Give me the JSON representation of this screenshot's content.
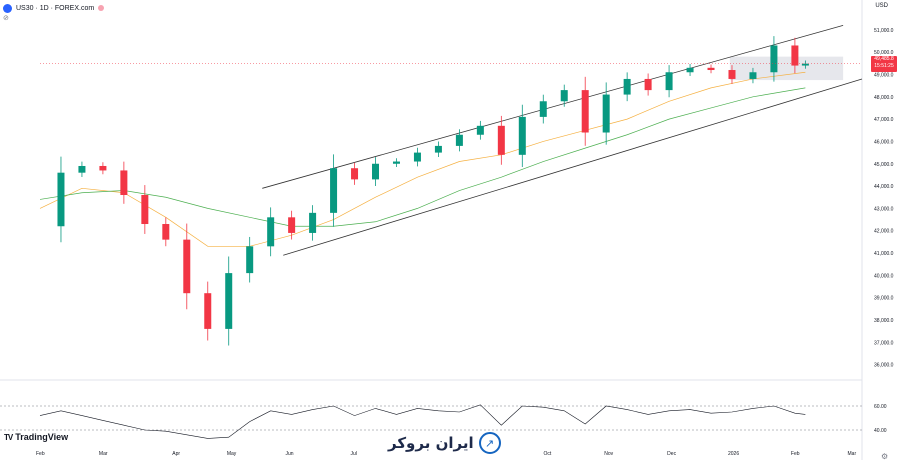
{
  "header": {
    "title": "US30 · 1D · FOREX.com",
    "currency": "USD"
  },
  "price_tag": {
    "price": "49,485.8",
    "countdown": "15:51:25",
    "color": "#f23645"
  },
  "branding": {
    "tradingview": "TradingView",
    "watermark": "ایران بروکر"
  },
  "colors": {
    "up": "#089981",
    "down": "#f23645",
    "ma_fast": "#f5b041",
    "ma_slow": "#4caf50",
    "channel": "#333333",
    "rsi": "#131722",
    "zone": "#d1d4dc"
  },
  "chart_data": {
    "type": "candlestick",
    "symbol": "US30",
    "timeframe": "1D",
    "price_axis": {
      "ticks": [
        51000,
        50000,
        49000,
        48000,
        47000,
        46000,
        45000,
        44000,
        43000,
        42000,
        41000,
        40000,
        39000,
        38000,
        37000,
        36000
      ],
      "labels": [
        "51,000.0",
        "50,000.0",
        "49,000.0",
        "48,000.0",
        "47,000.0",
        "46,000.0",
        "45,000.0",
        "44,000.0",
        "43,000.0",
        "42,000.0",
        "41,000.0",
        "40,000.0",
        "39,000.0",
        "38,000.0",
        "37,000.0",
        "36,000.0"
      ],
      "range": [
        35400,
        51800
      ]
    },
    "x_axis": {
      "labels": [
        "Feb",
        "Mar",
        "Apr",
        "May",
        "Jun",
        "Jul",
        "Oct",
        "Nov",
        "Dec",
        "2026",
        "Feb",
        "Mar"
      ],
      "label_positions": [
        0.0,
        3.0,
        6.5,
        9.1,
        11.9,
        15.0,
        24.2,
        27.1,
        30.1,
        33.0,
        36.0,
        38.7
      ]
    },
    "series": [
      {
        "name": "US30",
        "t": [
          0,
          1,
          2,
          3,
          4,
          5,
          6,
          7,
          8,
          9,
          10,
          11,
          12,
          13,
          14,
          15,
          16,
          17,
          18,
          19,
          20,
          21,
          22,
          23,
          24,
          25,
          26,
          27,
          28,
          29,
          30,
          31,
          32,
          33,
          34,
          35,
          36,
          36.5
        ],
        "close": [
          42200,
          44600,
          44900,
          44700,
          43600,
          42300,
          41600,
          39200,
          37600,
          40100,
          41300,
          42600,
          41900,
          42800,
          44800,
          44300,
          45000,
          45100,
          45500,
          45800,
          46300,
          46700,
          45400,
          47100,
          47800,
          48300,
          46400,
          48100,
          48800,
          48300,
          49100,
          49300,
          49200,
          48800,
          49100,
          50300,
          49400,
          49485.8
        ]
      },
      {
        "name": "MA fast",
        "t": [
          0,
          2,
          4,
          6,
          8,
          10,
          12,
          14,
          16,
          18,
          20,
          22,
          24,
          26,
          28,
          30,
          32,
          34,
          36.5
        ],
        "values": [
          43000,
          43900,
          43700,
          42600,
          41300,
          41300,
          41800,
          42500,
          43500,
          44400,
          45100,
          45400,
          46000,
          46500,
          47000,
          47800,
          48400,
          48800,
          49100
        ]
      },
      {
        "name": "MA slow",
        "t": [
          0,
          2,
          4,
          6,
          8,
          10,
          12,
          14,
          16,
          18,
          20,
          22,
          24,
          26,
          28,
          30,
          32,
          34,
          36.5
        ],
        "values": [
          43400,
          43700,
          43800,
          43500,
          43000,
          42600,
          42200,
          42200,
          42400,
          43000,
          43800,
          44400,
          45100,
          45700,
          46300,
          47000,
          47500,
          48000,
          48400
        ]
      }
    ],
    "channel": {
      "upper": [
        [
          10.6,
          43900
        ],
        [
          38.3,
          51200
        ]
      ],
      "lower": [
        [
          11.6,
          40900
        ],
        [
          39.2,
          48800
        ]
      ]
    },
    "zone": {
      "t": [
        32.9,
        38.3
      ],
      "price": [
        49800,
        48750
      ]
    },
    "rsi": {
      "levels": [
        60,
        40
      ],
      "labels": [
        "60.00",
        "40.00"
      ],
      "range": [
        30,
        80
      ],
      "values": [
        52,
        56,
        52,
        48,
        44,
        40,
        39,
        36,
        33,
        34,
        47,
        56,
        53,
        57,
        60,
        52,
        58,
        53,
        58,
        56,
        55,
        61,
        44,
        60,
        59,
        56,
        45,
        60,
        57,
        53,
        56,
        57,
        54,
        55,
        58,
        60,
        54,
        53
      ]
    }
  }
}
